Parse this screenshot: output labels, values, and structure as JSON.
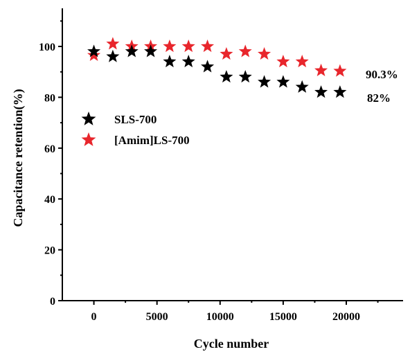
{
  "chart_data": {
    "type": "scatter",
    "xlabel": "Cycle number",
    "ylabel": "Capacitance retention(%)",
    "xlim": [
      -2500,
      24500
    ],
    "ylim": [
      0,
      115
    ],
    "xticks": [
      0,
      5000,
      10000,
      15000,
      20000
    ],
    "yticks": [
      0,
      20,
      40,
      60,
      80,
      100
    ],
    "xtick_labels": [
      "0",
      "5000",
      "10000",
      "15000",
      "20000"
    ],
    "ytick_labels": [
      "0",
      "20",
      "40",
      "60",
      "80",
      "100"
    ],
    "marker": "star",
    "grid": false,
    "legend_position": "middle-left",
    "series": [
      {
        "name": "SLS-700",
        "color": "#000000",
        "x": [
          0,
          1500,
          3000,
          4500,
          6000,
          7500,
          9000,
          10500,
          12000,
          13500,
          15000,
          16500,
          18000,
          19500
        ],
        "y": [
          98,
          96,
          98,
          98,
          94,
          94,
          92,
          88,
          88,
          86,
          86,
          84,
          82,
          82
        ]
      },
      {
        "name": "[Amim]LS-700",
        "color": "#e8262c",
        "x": [
          0,
          1500,
          3000,
          4500,
          6000,
          7500,
          9000,
          10500,
          12000,
          13500,
          15000,
          16500,
          18000,
          19500
        ],
        "y": [
          96.5,
          101,
          100,
          100,
          100,
          100,
          100,
          97,
          98,
          97,
          94,
          94,
          90.5,
          90.3
        ]
      }
    ],
    "annotations": [
      {
        "text": "90.3%",
        "x": 19500,
        "y": 90.3
      },
      {
        "text": "82%",
        "x": 19500,
        "y": 82
      }
    ]
  }
}
